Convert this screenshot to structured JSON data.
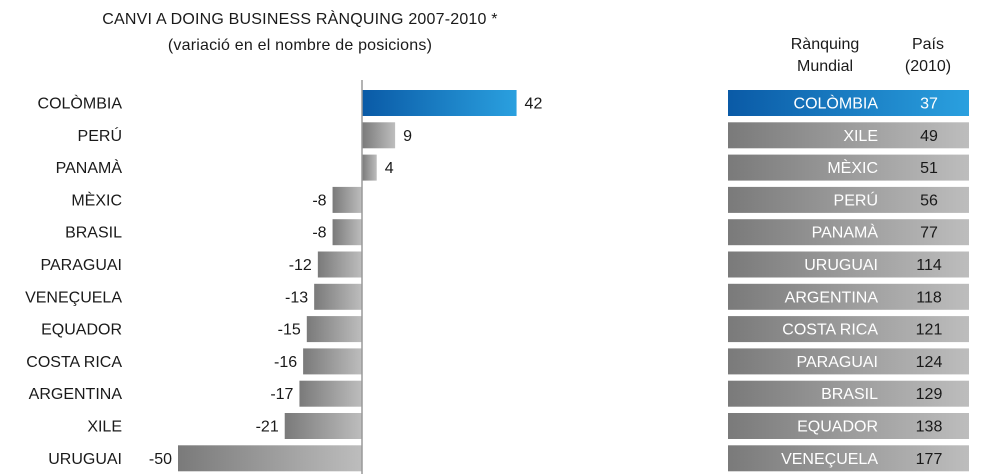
{
  "chart_data": [
    {
      "type": "bar",
      "orientation": "horizontal",
      "title": "CANVI A DOING BUSINESS RÀNQUING 2007-2010 *",
      "subtitle": "(variació en el nombre de posicions)",
      "categories": [
        "COLÒMBIA",
        "PERÚ",
        "PANAMÀ",
        "MÈXIC",
        "BRASIL",
        "PARAGUAI",
        "VENEÇUELA",
        "EQUADOR",
        "COSTA RICA",
        "ARGENTINA",
        "XILE",
        "URUGUAI"
      ],
      "values": [
        42,
        9,
        4,
        -8,
        -8,
        -12,
        -13,
        -15,
        -16,
        -17,
        -21,
        -50
      ],
      "data_labels": [
        "42",
        "9",
        "4",
        "-8",
        "-8",
        "-12",
        "-13",
        "-15",
        "-16",
        "-17",
        "-21",
        "-50"
      ],
      "highlight_category": "COLÒMBIA",
      "xlim": [
        -50,
        42
      ]
    },
    {
      "type": "table",
      "headers": [
        "Rànquing Mundial",
        "País (2010)"
      ],
      "header_rank_line1": "Rànquing",
      "header_rank_line2": "Mundial",
      "header_country_line1": "País",
      "header_country_line2": "(2010)",
      "rows": [
        {
          "country": "COLÒMBIA",
          "rank": 37,
          "rank_label": "37"
        },
        {
          "country": "XILE",
          "rank": 49,
          "rank_label": "49"
        },
        {
          "country": "MÈXIC",
          "rank": 51,
          "rank_label": "51"
        },
        {
          "country": "PERÚ",
          "rank": 56,
          "rank_label": "56"
        },
        {
          "country": "PANAMÀ",
          "rank": 77,
          "rank_label": "77"
        },
        {
          "country": "URUGUAI",
          "rank": 114,
          "rank_label": "114"
        },
        {
          "country": "ARGENTINA",
          "rank": 118,
          "rank_label": "118"
        },
        {
          "country": "COSTA RICA",
          "rank": 121,
          "rank_label": "121"
        },
        {
          "country": "PARAGUAI",
          "rank": 124,
          "rank_label": "124"
        },
        {
          "country": "BRASIL",
          "rank": 129,
          "rank_label": "129"
        },
        {
          "country": "EQUADOR",
          "rank": 138,
          "rank_label": "138"
        },
        {
          "country": "VENEÇUELA",
          "rank": 177,
          "rank_label": "177"
        }
      ],
      "highlight_country": "COLÒMBIA"
    }
  ],
  "colors": {
    "highlight_dark": "#0a5aa6",
    "highlight_light": "#2aa0df",
    "gray_dark": "#7a7a7a",
    "gray_light": "#bdbdbd",
    "axis": "#9a9a9a"
  }
}
